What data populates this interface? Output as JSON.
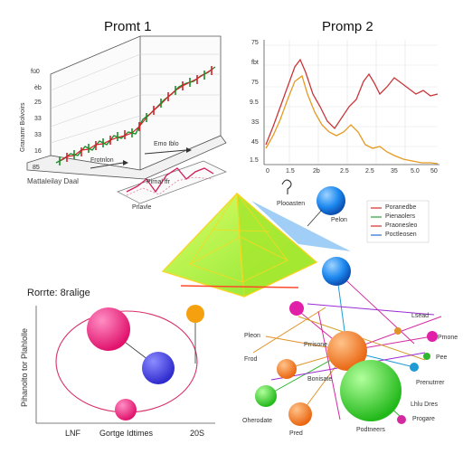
{
  "titles": {
    "prompt1": "Promt 1",
    "prompt2": "Promp 2",
    "bottom_left": "Rorrte: 8ralige"
  },
  "panel1": {
    "y_ticks": [
      "fü0",
      "èb",
      "25",
      "33",
      "33",
      "16",
      "85"
    ],
    "ylabel": "Granamr Bolvoirs",
    "xlabel": "Mattaleilay Daal",
    "annotations": [
      "Frotnlon",
      "Emo Iblo",
      "Pirnal ffr",
      "Prlavle"
    ]
  },
  "panel2": {
    "y_ticks": [
      "75",
      "fbt",
      "75",
      "9.5",
      "3S",
      "45",
      "1.5"
    ],
    "x_ticks": [
      "0",
      "1.5",
      "2b",
      "2.5",
      "2.5",
      "35",
      "5.0",
      "50"
    ]
  },
  "pyramid": {
    "labels": [
      "Plooasten",
      "Pelon"
    ]
  },
  "legend_box": {
    "entries": [
      "Poranedbe",
      "Pienaolers",
      "Praonesleo",
      "Poctleosen"
    ]
  },
  "panel_bl": {
    "ylabel": "Pihanolto tor Plahlolle",
    "x_ticks": [
      "LNF",
      "Gortge Idtimes",
      "20S"
    ]
  },
  "network": {
    "labels": [
      "Lsead",
      "Pleon",
      "Frod",
      "Bonisate",
      "Pmone",
      "Prrisone",
      "Pee",
      "Pred",
      "Oherodate",
      "Prenutrrer",
      "Progare",
      "Podtneers",
      "Lhlu Dres"
    ]
  },
  "colors": {
    "bubble_pink": "#ee1f7a",
    "bubble_blue": "#3f3ce0",
    "bubble_orange": "#f57a18",
    "bubble_green": "#34d42c",
    "sphere_blue": "#1e8af0",
    "pyramid": "#b4f23a"
  }
}
